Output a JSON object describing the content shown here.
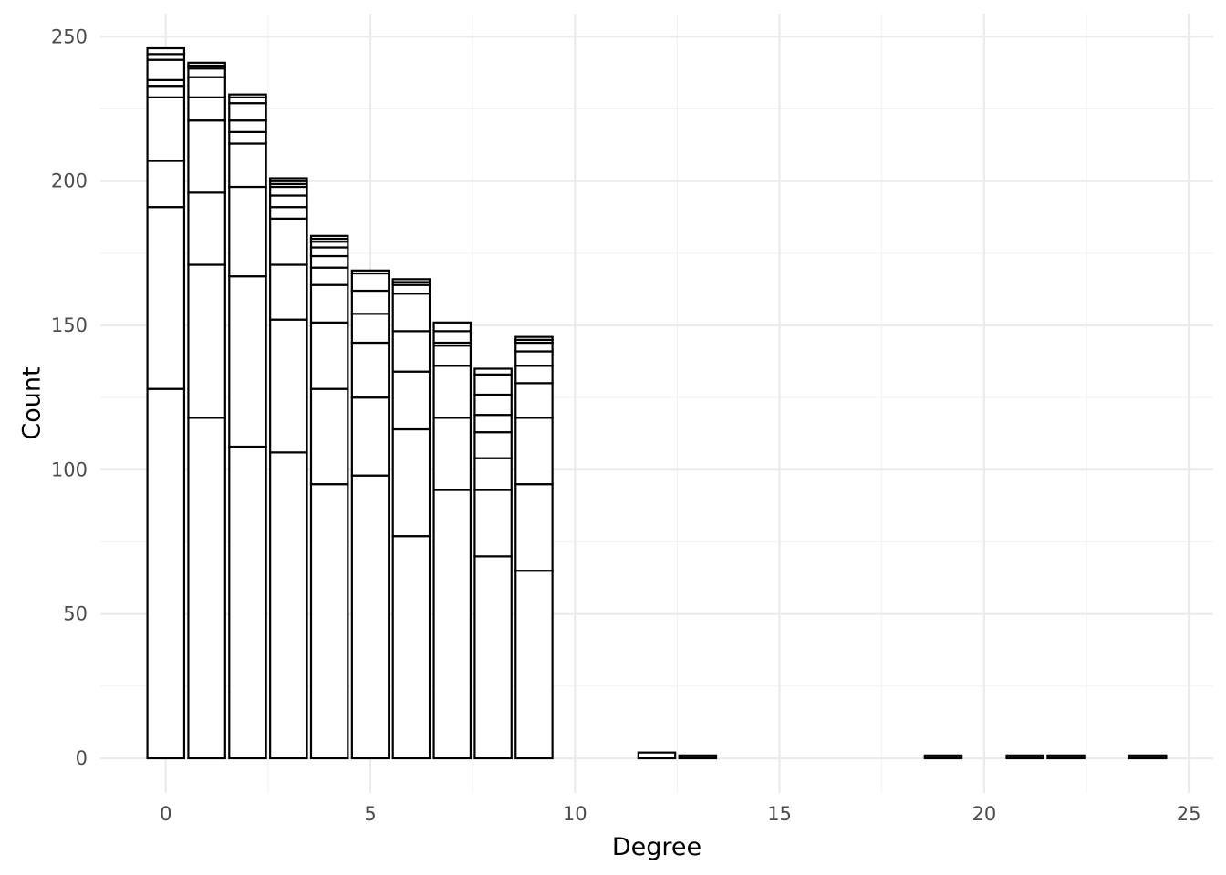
{
  "chart_data": {
    "type": "bar",
    "stacked": true,
    "title": "",
    "xlabel": "Degree",
    "ylabel": "Count",
    "xlim": [
      -1.6,
      25.6
    ],
    "ylim": [
      -12,
      258
    ],
    "x_ticks": [
      0,
      5,
      10,
      15,
      20,
      25
    ],
    "y_ticks": [
      0,
      50,
      100,
      150,
      200,
      250
    ],
    "grid": true,
    "legend": "none",
    "bar_width": 0.9,
    "bars": [
      {
        "x": 0,
        "total": 246,
        "segments": [
          128,
          63,
          16,
          22,
          4,
          2,
          7,
          2,
          2
        ]
      },
      {
        "x": 1,
        "total": 241,
        "segments": [
          118,
          53,
          25,
          25,
          8,
          7,
          3,
          1,
          1
        ]
      },
      {
        "x": 2,
        "total": 230,
        "segments": [
          108,
          59,
          31,
          15,
          4,
          4,
          6,
          2,
          1
        ]
      },
      {
        "x": 3,
        "total": 201,
        "segments": [
          106,
          46,
          19,
          16,
          4,
          4,
          3,
          1,
          1,
          1
        ]
      },
      {
        "x": 4,
        "total": 181,
        "segments": [
          95,
          33,
          23,
          13,
          6,
          4,
          3,
          2,
          1,
          1
        ]
      },
      {
        "x": 5,
        "total": 169,
        "segments": [
          98,
          27,
          19,
          10,
          8,
          6,
          1
        ]
      },
      {
        "x": 6,
        "total": 166,
        "segments": [
          77,
          37,
          20,
          14,
          13,
          3,
          1,
          1
        ]
      },
      {
        "x": 7,
        "total": 151,
        "segments": [
          93,
          25,
          18,
          7,
          1,
          4,
          3
        ]
      },
      {
        "x": 8,
        "total": 135,
        "segments": [
          70,
          23,
          11,
          9,
          6,
          7,
          7,
          2
        ]
      },
      {
        "x": 9,
        "total": 146,
        "segments": [
          65,
          30,
          23,
          12,
          6,
          5,
          3,
          1,
          1
        ]
      },
      {
        "x": 12,
        "total": 2,
        "segments": [
          2
        ]
      },
      {
        "x": 13,
        "total": 1,
        "segments": [
          1
        ]
      },
      {
        "x": 19,
        "total": 1,
        "segments": [
          1
        ]
      },
      {
        "x": 21,
        "total": 1,
        "segments": [
          1
        ]
      },
      {
        "x": 22,
        "total": 1,
        "segments": [
          1
        ]
      },
      {
        "x": 24,
        "total": 1,
        "segments": [
          1
        ]
      }
    ]
  }
}
